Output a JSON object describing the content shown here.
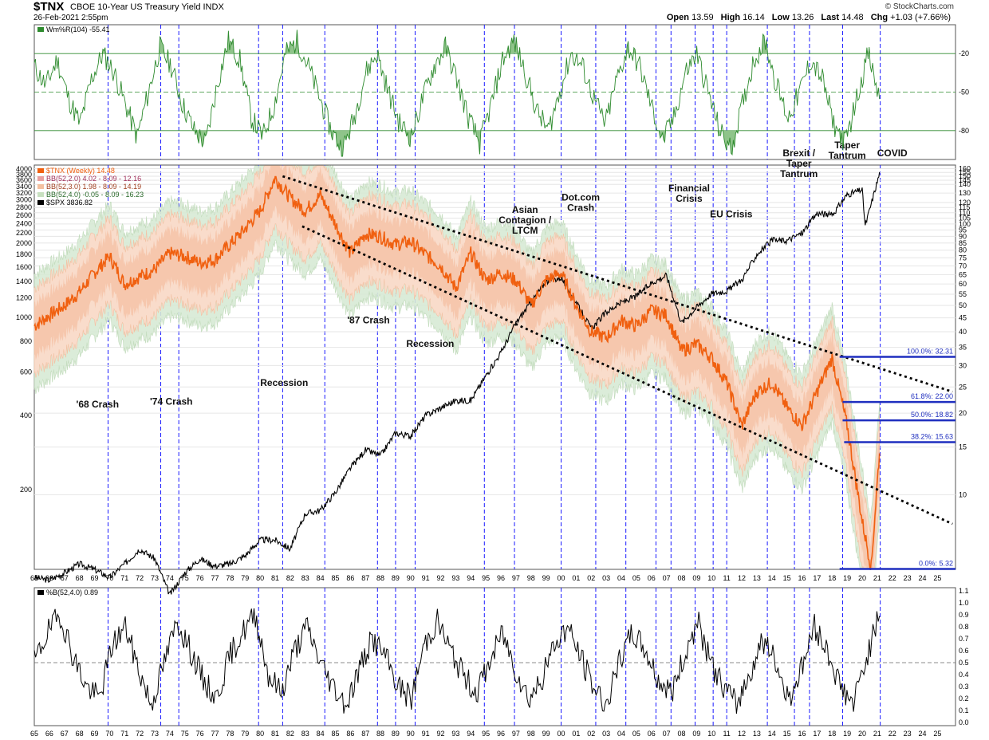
{
  "header": {
    "symbol": "$TNX",
    "name": "CBOE 10-Year US Treasury Yield INDX",
    "date": "26-Feb-2021 2:55pm",
    "brand": "© StockCharts.com",
    "ohlc": [
      {
        "label": "Open",
        "value": "13.59"
      },
      {
        "label": "High",
        "value": "16.14"
      },
      {
        "label": "Low",
        "value": "13.26"
      },
      {
        "label": "Last",
        "value": "14.48"
      },
      {
        "label": "Chg",
        "value": "+1.03 (+7.66%)"
      }
    ]
  },
  "colors": {
    "tnx": "#f06010",
    "spx": "#000000",
    "willr": "#2e8b2e",
    "band": "#f4b796",
    "outer": "#d8ead5",
    "vline": "#1a1aff",
    "fib": "#1f2fbf"
  },
  "chart_data": [
    {
      "type": "line",
      "panel": "top",
      "legend": "Wm%R(104) -55.41",
      "ylim": [
        -100,
        0
      ],
      "yticks": [
        "-20",
        "-50",
        "-80"
      ],
      "x_start": 1965,
      "x_end": 2021.15,
      "values": [
        -30,
        -45,
        -25,
        -55,
        -75,
        -40,
        -20,
        -35,
        -60,
        -85,
        -50,
        -15,
        -30,
        -60,
        -80,
        -90,
        -45,
        -10,
        -25,
        -70,
        -85,
        -60,
        -20,
        -10,
        -30,
        -55,
        -80,
        -95,
        -70,
        -35,
        -20,
        -50,
        -75,
        -85,
        -55,
        -30,
        -15,
        -40,
        -70,
        -90,
        -60,
        -25,
        -10,
        -35,
        -65,
        -80,
        -50,
        -20,
        -30,
        -55,
        -75,
        -40,
        -15,
        -30,
        -60,
        -88,
        -70,
        -35,
        -20,
        -50,
        -80,
        -95,
        -60,
        -25,
        -10,
        -45,
        -70,
        -50,
        -25,
        -40,
        -75,
        -90,
        -55,
        -20,
        -55.41
      ]
    },
    {
      "type": "line",
      "panel": "main",
      "title": "$TNX (Weekly) 14.48",
      "series": [
        {
          "name": "$TNX (Weekly) 14.48",
          "x": [
            1965,
            1966,
            1967,
            1968,
            1969,
            1970,
            1971,
            1972,
            1973,
            1974,
            1975,
            1976,
            1977,
            1978,
            1979,
            1980,
            1981,
            1982,
            1983,
            1984,
            1985,
            1986,
            1987,
            1988,
            1989,
            1990,
            1991,
            1992,
            1993,
            1994,
            1995,
            1996,
            1997,
            1998,
            1999,
            2000,
            2001,
            2002,
            2003,
            2004,
            2005,
            2006,
            2007,
            2008,
            2009,
            2010,
            2011,
            2012,
            2013,
            2014,
            2015,
            2016,
            2017,
            2018,
            2019,
            2020,
            2020.6,
            2021.15
          ],
          "values": [
            42,
            46,
            50,
            56,
            66,
            76,
            60,
            64,
            68,
            78,
            76,
            72,
            74,
            84,
            96,
            112,
            148,
            125,
            112,
            128,
            100,
            78,
            92,
            90,
            84,
            86,
            77,
            70,
            58,
            78,
            62,
            66,
            62,
            50,
            62,
            66,
            50,
            40,
            38,
            44,
            42,
            48,
            46,
            34,
            36,
            32,
            26,
            18,
            24,
            26,
            21,
            18,
            24,
            32,
            18,
            8,
            5.4,
            14.48
          ]
        },
        {
          "name": "$SPX 3836.82",
          "x": [
            1965,
            1966,
            1967,
            1968,
            1969,
            1970,
            1971,
            1972,
            1973,
            1974,
            1975,
            1976,
            1977,
            1978,
            1979,
            1980,
            1981,
            1982,
            1983,
            1984,
            1985,
            1986,
            1987,
            1988,
            1989,
            1990,
            1991,
            1992,
            1993,
            1994,
            1995,
            1996,
            1997,
            1998,
            1999,
            2000,
            2001,
            2002,
            2003,
            2004,
            2005,
            2006,
            2007,
            2008,
            2009,
            2010,
            2011,
            2012,
            2013,
            2014,
            2015,
            2016,
            2017,
            2018,
            2019,
            2020,
            2020.2,
            2021.15
          ],
          "values": [
            88,
            86,
            92,
            100,
            95,
            88,
            100,
            115,
            105,
            75,
            92,
            105,
            98,
            100,
            108,
            125,
            125,
            115,
            160,
            165,
            195,
            245,
            290,
            275,
            340,
            330,
            400,
            430,
            460,
            460,
            580,
            720,
            950,
            1150,
            1400,
            1450,
            1150,
            900,
            1050,
            1150,
            1220,
            1380,
            1480,
            950,
            1100,
            1250,
            1280,
            1420,
            1800,
            2050,
            2050,
            2200,
            2650,
            2600,
            3150,
            3300,
            2350,
            3836.82
          ]
        }
      ],
      "bands": [
        {
          "name": "BB(52,2.0) 4.02 - 8.09 - 12.16"
        },
        {
          "name": "BB(52,3.0) 1.98 - 8.09 - 14.19"
        },
        {
          "name": "BB(52,4.0) -0.05 - 8.09 - 16.23"
        }
      ],
      "left_ticks": [
        "4000",
        "3800",
        "3600",
        "3400",
        "3200",
        "3000",
        "2800",
        "2600",
        "2400",
        "2200",
        "2000",
        "1800",
        "1600",
        "1400",
        "1200",
        "1000",
        "800",
        "600",
        "400",
        "200"
      ],
      "right_ticks": [
        "160",
        "155",
        "150",
        "145",
        "140",
        "130",
        "120",
        "115",
        "110",
        "105",
        "100",
        "95",
        "90",
        "85",
        "80",
        "75",
        "70",
        "65",
        "60",
        "55",
        "50",
        "45",
        "40",
        "35",
        "30",
        "25",
        "20",
        "15",
        "10"
      ],
      "x_ticks": [
        "65",
        "66",
        "67",
        "68",
        "69",
        "70",
        "71",
        "72",
        "73",
        "74",
        "75",
        "76",
        "77",
        "78",
        "79",
        "80",
        "81",
        "82",
        "83",
        "84",
        "85",
        "86",
        "87",
        "88",
        "89",
        "90",
        "91",
        "92",
        "93",
        "94",
        "95",
        "96",
        "97",
        "98",
        "99",
        "00",
        "01",
        "02",
        "03",
        "04",
        "05",
        "06",
        "07",
        "08",
        "09",
        "10",
        "11",
        "12",
        "13",
        "14",
        "15",
        "16",
        "17",
        "18",
        "19",
        "20",
        "21",
        "22",
        "23",
        "24",
        "25"
      ],
      "events": [
        1969.9,
        1973.4,
        1974.6,
        1979.9,
        1981.5,
        1984.3,
        1987.8,
        1989.0,
        1990.3,
        1994.9,
        1996.9,
        2000.0,
        2002.3,
        2004.3,
        2006.3,
        2007.3,
        2008.9,
        2010.1,
        2011.0,
        2013.7,
        2015.5,
        2016.5,
        2018.7,
        2021.2
      ],
      "trendlines": [
        {
          "x": [
            1981.5,
            2026
          ],
          "y": [
            150,
            24
          ]
        },
        {
          "x": [
            1982.8,
            2026
          ],
          "y": [
            98,
            7.8
          ]
        }
      ],
      "fib_levels": [
        {
          "label": "100.0%: 32.31",
          "value": 32.31,
          "x_from": 2018.5
        },
        {
          "label": "61.8%: 22.00",
          "value": 22.0,
          "x_from": 2018.7
        },
        {
          "label": "50.0%: 18.82",
          "value": 18.82,
          "x_from": 2018.7
        },
        {
          "label": "38.2%: 15.63",
          "value": 15.63,
          "x_from": 2018.8
        },
        {
          "label": "0.0%: 5.32",
          "value": 5.32,
          "x_from": 2018.5
        }
      ],
      "annotations": [
        {
          "lines": [
            "'68 Crash"
          ],
          "x": 1969.2,
          "y": 21
        },
        {
          "lines": [
            "'74 Crash"
          ],
          "x": 1974.1,
          "y": 21.5
        },
        {
          "lines": [
            "Recession"
          ],
          "x": 1981.6,
          "y": 25.2
        },
        {
          "lines": [
            "'87 Crash"
          ],
          "x": 1987.2,
          "y": 43
        },
        {
          "lines": [
            "Recession"
          ],
          "x": 1991.3,
          "y": 35.2
        },
        {
          "lines": [
            "Asian",
            "Contagion /",
            "LTCM"
          ],
          "x": 1997.6,
          "y": 110
        },
        {
          "lines": [
            "Dot.com",
            "Crash"
          ],
          "x": 2001.3,
          "y": 122
        },
        {
          "lines": [
            "Financial",
            "Crisis"
          ],
          "x": 2008.5,
          "y": 132
        },
        {
          "lines": [
            "EU Crisis"
          ],
          "x": 2011.3,
          "y": 106
        },
        {
          "lines": [
            "Brexit /",
            "Taper",
            "Tantrum"
          ],
          "x": 2015.8,
          "y": 178
        },
        {
          "lines": [
            "Taper",
            "Tantrum"
          ],
          "x": 2019.0,
          "y": 190
        },
        {
          "lines": [
            "COVID"
          ],
          "x": 2022.0,
          "y": 178
        }
      ]
    },
    {
      "type": "line",
      "panel": "bottom",
      "legend": "%B(52,4.0) 0.89",
      "ylim": [
        0,
        1.1
      ],
      "yticks": [
        "1.1",
        "1.0",
        "0.9",
        "0.8",
        "0.7",
        "0.6",
        "0.5",
        "0.4",
        "0.3",
        "0.2",
        "0.1",
        "0.0"
      ],
      "x_start": 1965,
      "x_end": 2021.15,
      "values": [
        0.5,
        0.75,
        0.9,
        0.55,
        0.3,
        0.2,
        0.65,
        0.8,
        0.45,
        0.15,
        0.5,
        0.85,
        0.6,
        0.35,
        0.2,
        0.55,
        0.75,
        0.9,
        0.4,
        0.25,
        0.6,
        0.8,
        0.5,
        0.3,
        0.15,
        0.45,
        0.7,
        0.55,
        0.3,
        0.2,
        0.65,
        0.85,
        0.6,
        0.4,
        0.25,
        0.5,
        0.75,
        0.45,
        0.2,
        0.35,
        0.65,
        0.8,
        0.55,
        0.3,
        0.15,
        0.5,
        0.75,
        0.6,
        0.35,
        0.25,
        0.55,
        0.85,
        0.5,
        0.3,
        0.15,
        0.4,
        0.7,
        0.5,
        0.2,
        0.45,
        0.8,
        0.6,
        0.3,
        0.15,
        0.55,
        0.89
      ]
    }
  ]
}
